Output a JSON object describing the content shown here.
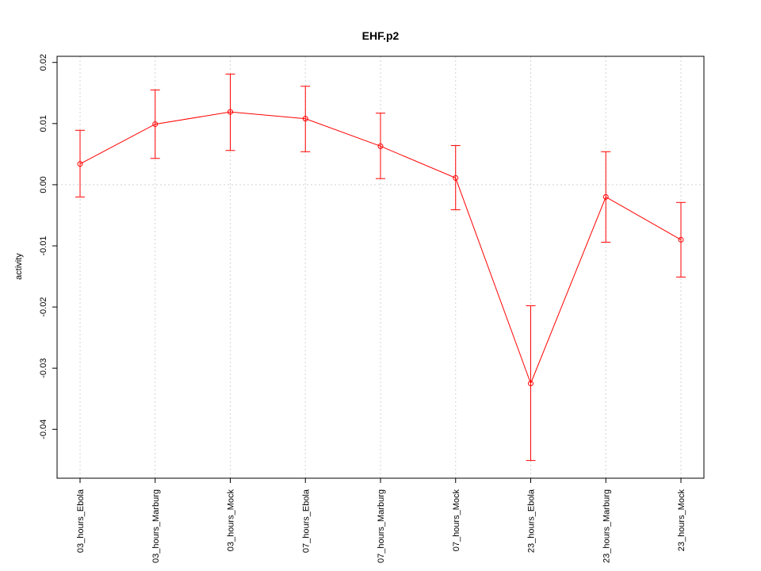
{
  "chart_data": {
    "type": "line",
    "title": "EHF.p2",
    "xlabel": "",
    "ylabel": "activity",
    "categories": [
      "03_hours_Ebola",
      "03_hours_Marburg",
      "03_hours_Mock",
      "07_hours_Ebola",
      "07_hours_Marburg",
      "07_hours_Mock",
      "23_hours_Ebola",
      "23_hours_Marburg",
      "23_hours_Mock"
    ],
    "values": [
      0.0034,
      0.0099,
      0.0119,
      0.0108,
      0.0063,
      0.0011,
      -0.0325,
      -0.002,
      -0.009
    ],
    "error_upper": [
      0.0089,
      0.0155,
      0.0181,
      0.0161,
      0.0117,
      0.0064,
      -0.0198,
      0.0054,
      -0.0029
    ],
    "error_lower": [
      -0.002,
      0.0043,
      0.0056,
      0.0054,
      0.001,
      -0.0041,
      -0.0451,
      -0.0094,
      -0.0151
    ],
    "yticks": [
      -0.04,
      -0.03,
      -0.02,
      -0.01,
      0.0,
      0.01,
      0.02
    ],
    "ytick_labels": [
      "-0.04",
      "-0.03",
      "-0.02",
      "-0.01",
      "0.00",
      "0.01",
      "0.02"
    ],
    "ylim": [
      -0.048,
      0.021
    ],
    "grid": true,
    "color": "#ff0000"
  }
}
